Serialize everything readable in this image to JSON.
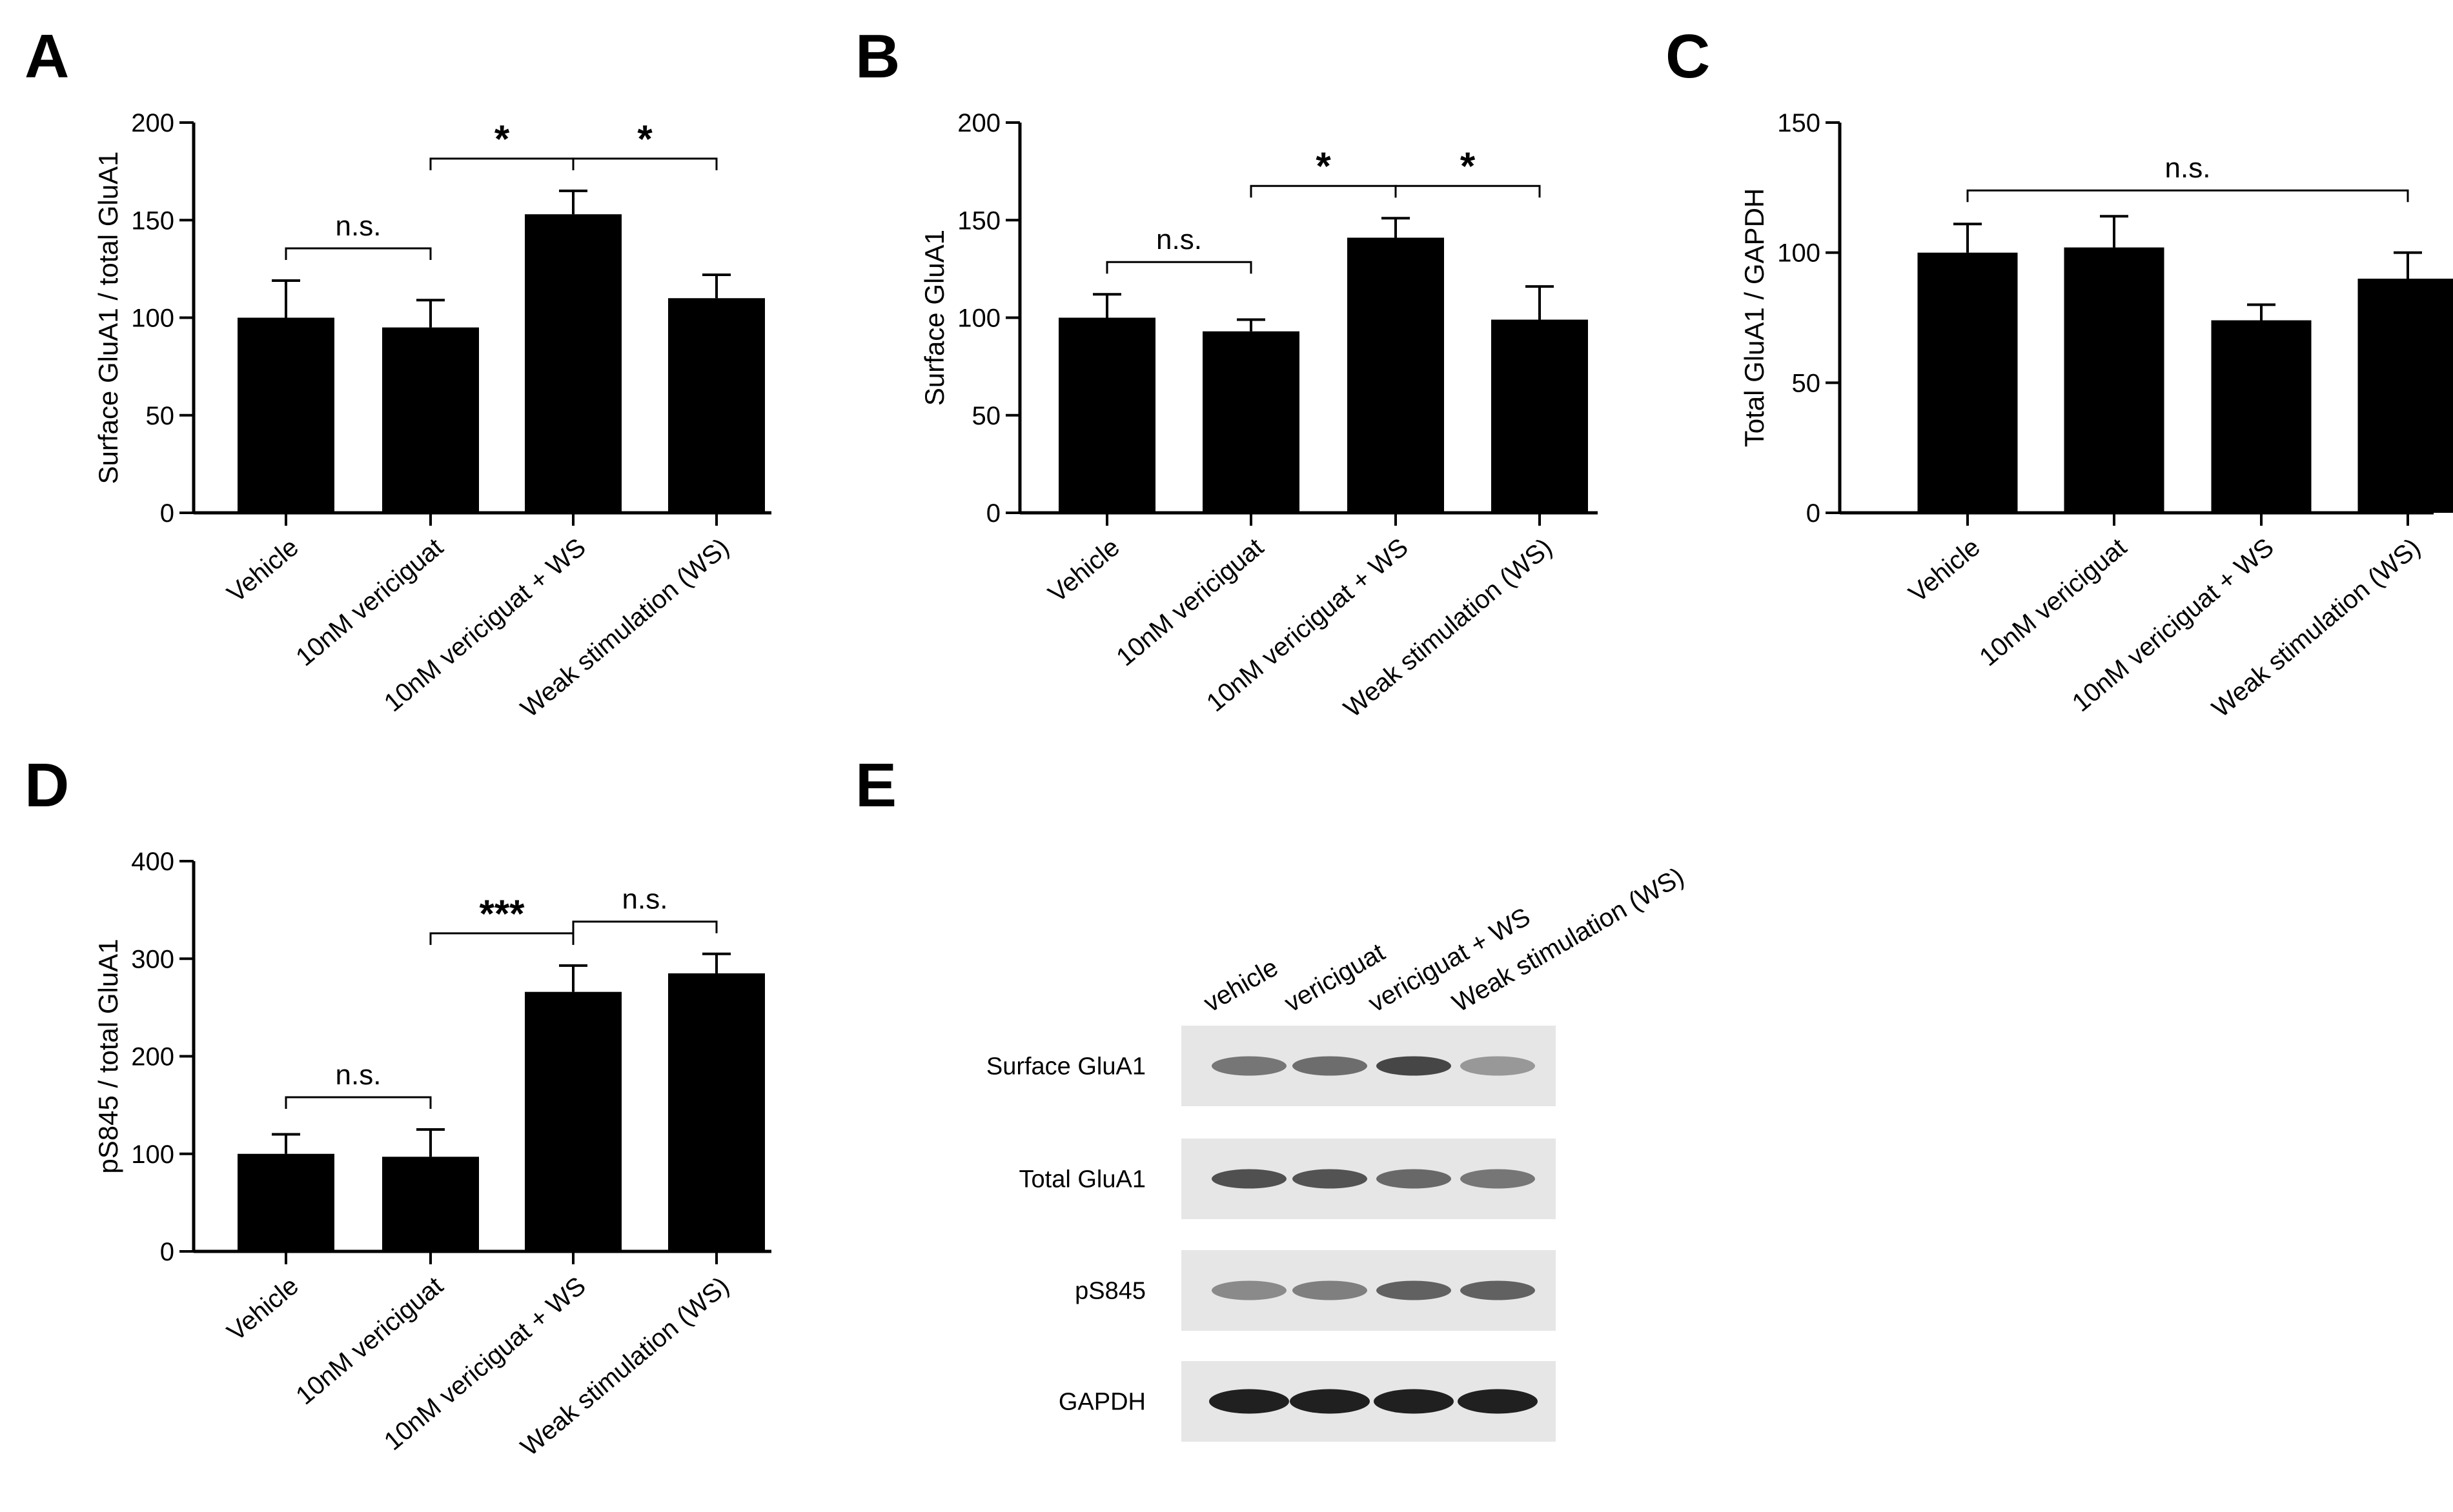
{
  "categories": [
    "Vehicle",
    "10nM vericiguat",
    "10nM vericiguat + WS",
    "Weak stimulation (WS)"
  ],
  "chart_data": [
    {
      "panel": "A",
      "type": "bar",
      "ylabel": "Surface GluA1 / total GluA1",
      "ylim": [
        0,
        200
      ],
      "yticks": [
        0,
        50,
        100,
        150,
        200
      ],
      "values": [
        100,
        95,
        153,
        110
      ],
      "errors": [
        19,
        14,
        12,
        12
      ],
      "comparisons": [
        {
          "from": 0,
          "to": 1,
          "label": "n.s."
        },
        {
          "from": 1,
          "to": 2,
          "label": "*"
        },
        {
          "from": 2,
          "to": 3,
          "label": "*"
        }
      ]
    },
    {
      "panel": "B",
      "type": "bar",
      "ylabel": "Surface GluA1",
      "ylim": [
        0,
        200
      ],
      "yticks": [
        0,
        50,
        100,
        150,
        200
      ],
      "values": [
        100,
        93,
        141,
        99
      ],
      "errors": [
        12,
        6,
        10,
        17
      ],
      "comparisons": [
        {
          "from": 0,
          "to": 1,
          "label": "n.s."
        },
        {
          "from": 1,
          "to": 2,
          "label": "*"
        },
        {
          "from": 2,
          "to": 3,
          "label": "*"
        }
      ]
    },
    {
      "panel": "C",
      "type": "bar",
      "ylabel": "Total GluA1 / GAPDH",
      "ylim": [
        0,
        150
      ],
      "yticks": [
        0,
        50,
        100,
        150
      ],
      "values": [
        100,
        102,
        74,
        90
      ],
      "errors": [
        11,
        12,
        6,
        10
      ],
      "comparisons": [
        {
          "from": 0,
          "to": 3,
          "label": "n.s."
        }
      ]
    },
    {
      "panel": "D",
      "type": "bar",
      "ylabel": "pS845 / total GluA1",
      "ylim": [
        0,
        400
      ],
      "yticks": [
        0,
        100,
        200,
        300,
        400
      ],
      "values": [
        100,
        97,
        266,
        285
      ],
      "errors": [
        20,
        28,
        27,
        20
      ],
      "comparisons": [
        {
          "from": 0,
          "to": 1,
          "label": "n.s."
        },
        {
          "from": 1,
          "to": 2,
          "label": "***"
        },
        {
          "from": 2,
          "to": 3,
          "label": "n.s."
        }
      ]
    }
  ],
  "blot": {
    "panel": "E",
    "lanes": [
      "vehicle",
      "vericiguat",
      "vericiguat + WS",
      "Weak stimulation (WS)"
    ],
    "rows": [
      {
        "label": "Surface GluA1",
        "intensity": [
          0.5,
          0.55,
          0.78,
          0.3
        ]
      },
      {
        "label": "Total GluA1",
        "intensity": [
          0.72,
          0.7,
          0.58,
          0.5
        ]
      },
      {
        "label": "pS845",
        "intensity": [
          0.38,
          0.45,
          0.62,
          0.62
        ]
      },
      {
        "label": "GAPDH",
        "intensity": [
          1.0,
          1.0,
          1.0,
          1.0
        ]
      }
    ]
  }
}
